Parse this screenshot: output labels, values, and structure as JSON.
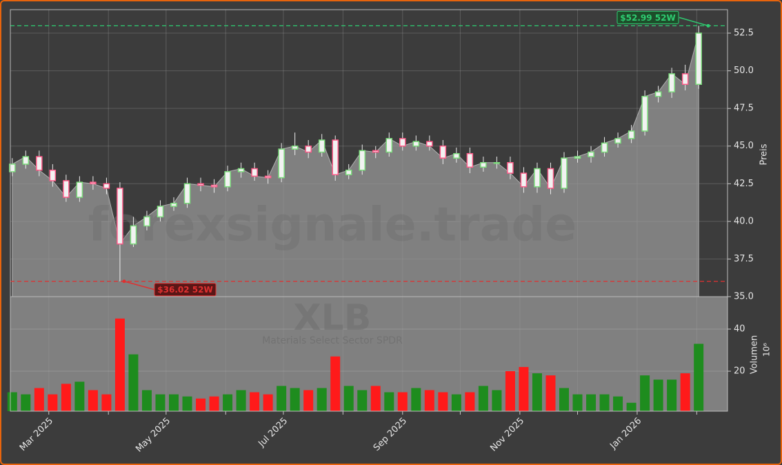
{
  "chart_data": {
    "type": "candlestick",
    "watermark": "forexsignale.trade",
    "symbol": "XLB",
    "name": "Materials Select Sector SPDR",
    "ylabel": "Preis",
    "volume_label": "Volumen",
    "volume_scale_label": "10⁶",
    "x": [
      "2025-02-10",
      "2025-02-17",
      "2025-02-24",
      "2025-03-03",
      "2025-03-10",
      "2025-03-17",
      "2025-03-24",
      "2025-03-31",
      "2025-04-07",
      "2025-04-14",
      "2025-04-21",
      "2025-04-28",
      "2025-05-05",
      "2025-05-12",
      "2025-05-19",
      "2025-05-26",
      "2025-06-02",
      "2025-06-09",
      "2025-06-16",
      "2025-06-23",
      "2025-06-30",
      "2025-07-07",
      "2025-07-14",
      "2025-07-21",
      "2025-07-28",
      "2025-08-04",
      "2025-08-11",
      "2025-08-18",
      "2025-08-25",
      "2025-09-01",
      "2025-09-08",
      "2025-09-15",
      "2025-09-22",
      "2025-09-29",
      "2025-10-06",
      "2025-10-13",
      "2025-10-20",
      "2025-10-27",
      "2025-11-03",
      "2025-11-10",
      "2025-11-17",
      "2025-11-24",
      "2025-12-01",
      "2025-12-08",
      "2025-12-15",
      "2025-12-22",
      "2025-12-29",
      "2026-01-05",
      "2026-01-12",
      "2026-01-19",
      "2026-01-26",
      "2026-02-02"
    ],
    "open": [
      43.3,
      43.8,
      44.3,
      43.4,
      42.7,
      41.6,
      42.6,
      42.5,
      42.2,
      38.5,
      39.7,
      40.3,
      41.0,
      41.2,
      42.5,
      42.4,
      42.3,
      43.3,
      43.5,
      43.0,
      42.9,
      44.8,
      45.0,
      44.6,
      45.4,
      43.1,
      43.4,
      44.7,
      44.6,
      45.5,
      45.0,
      45.3,
      45.0,
      44.2,
      44.5,
      43.6,
      43.9,
      43.9,
      43.2,
      42.3,
      43.5,
      42.2,
      44.2,
      44.3,
      44.6,
      45.2,
      45.5,
      46.0,
      48.3,
      48.6,
      49.8,
      49.1
    ],
    "high": [
      44.2,
      44.7,
      44.7,
      43.8,
      43.1,
      43.0,
      43.0,
      42.9,
      42.6,
      40.3,
      40.7,
      41.4,
      41.6,
      42.9,
      42.9,
      42.8,
      43.7,
      43.9,
      43.9,
      43.4,
      45.2,
      45.9,
      45.4,
      45.8,
      45.7,
      43.8,
      45.1,
      45.0,
      45.9,
      45.9,
      45.7,
      45.7,
      45.4,
      44.9,
      44.9,
      44.3,
      44.3,
      44.3,
      43.6,
      43.9,
      43.9,
      44.6,
      44.7,
      45.0,
      45.6,
      45.9,
      46.4,
      48.7,
      49.0,
      50.2,
      50.4,
      52.99
    ],
    "low": [
      43.0,
      43.5,
      43.0,
      42.3,
      41.3,
      41.3,
      42.1,
      41.8,
      36.02,
      38.3,
      39.4,
      40.0,
      40.7,
      40.9,
      42.0,
      41.9,
      42.0,
      42.9,
      42.7,
      42.5,
      42.6,
      44.4,
      44.2,
      44.3,
      42.7,
      42.8,
      43.1,
      44.2,
      44.3,
      44.7,
      44.7,
      44.7,
      43.8,
      43.9,
      43.2,
      43.3,
      43.5,
      42.8,
      41.9,
      41.9,
      41.8,
      41.9,
      43.9,
      43.9,
      44.3,
      44.9,
      45.2,
      45.7,
      47.9,
      48.2,
      48.7,
      48.8
    ],
    "close": [
      43.8,
      44.3,
      43.4,
      42.7,
      41.6,
      42.6,
      42.5,
      42.2,
      38.5,
      39.7,
      40.3,
      41.0,
      41.2,
      42.5,
      42.4,
      42.3,
      43.3,
      43.5,
      43.0,
      42.9,
      44.8,
      45.0,
      44.6,
      45.4,
      43.1,
      43.4,
      44.7,
      44.6,
      45.5,
      45.0,
      45.3,
      45.0,
      44.2,
      44.5,
      43.6,
      43.9,
      43.9,
      43.2,
      42.3,
      43.5,
      42.2,
      44.2,
      44.3,
      44.6,
      45.2,
      45.5,
      46.0,
      48.3,
      48.6,
      49.8,
      49.1,
      52.5
    ],
    "volume": [
      10,
      9,
      12,
      9,
      14,
      15,
      11,
      9,
      45,
      28,
      11,
      9,
      9,
      8,
      7,
      8,
      9,
      11,
      10,
      9,
      13,
      12,
      11,
      12,
      27,
      13,
      11,
      13,
      10,
      10,
      12,
      11,
      10,
      9,
      10,
      13,
      11,
      20,
      22,
      19,
      18,
      12,
      9,
      9,
      9,
      8,
      5,
      18,
      16,
      16,
      19,
      33
    ],
    "up_color": "#7dde7d",
    "down_color": "#ff5c8a",
    "volume_up_color": "#1e8c1e",
    "volume_down_color": "#ff1a1a",
    "area_color": "#808080",
    "xlim": [
      "2025-02-09",
      "2026-02-17"
    ],
    "xticks": [
      {
        "value": "2025-03-01",
        "label": "Mar 2025"
      },
      {
        "value": "2025-04-01",
        "label": null
      },
      {
        "value": "2025-05-01",
        "label": "May 2025"
      },
      {
        "value": "2025-06-01",
        "label": null
      },
      {
        "value": "2025-07-01",
        "label": "Jul 2025"
      },
      {
        "value": "2025-08-01",
        "label": null
      },
      {
        "value": "2025-09-01",
        "label": "Sep 2025"
      },
      {
        "value": "2025-10-01",
        "label": null
      },
      {
        "value": "2025-11-01",
        "label": "Nov 2025"
      },
      {
        "value": "2025-12-01",
        "label": null
      },
      {
        "value": "2026-01-01",
        "label": "Jan 2026"
      },
      {
        "value": "2026-02-01",
        "label": null
      }
    ],
    "ylim": [
      35,
      54.06
    ],
    "yticks": [
      {
        "value": 35,
        "label": "35.0"
      },
      {
        "value": 37.5,
        "label": "37.5"
      },
      {
        "value": 40,
        "label": "40.0"
      },
      {
        "value": 42.5,
        "label": "42.5"
      },
      {
        "value": 45,
        "label": "45.0"
      },
      {
        "value": 47.5,
        "label": "47.5"
      },
      {
        "value": 50,
        "label": "50.0"
      },
      {
        "value": 52.5,
        "label": "52.5"
      }
    ],
    "volume_ylim": [
      1,
      55.4
    ],
    "volume_yticks": [
      20,
      40
    ],
    "grid": true,
    "annotations": [
      {
        "value": 52.99,
        "label": "$52.99 52W",
        "color": "#2ecc71"
      },
      {
        "value": 36.02,
        "label": "$36.02 52W",
        "color": "#e03030"
      }
    ]
  }
}
